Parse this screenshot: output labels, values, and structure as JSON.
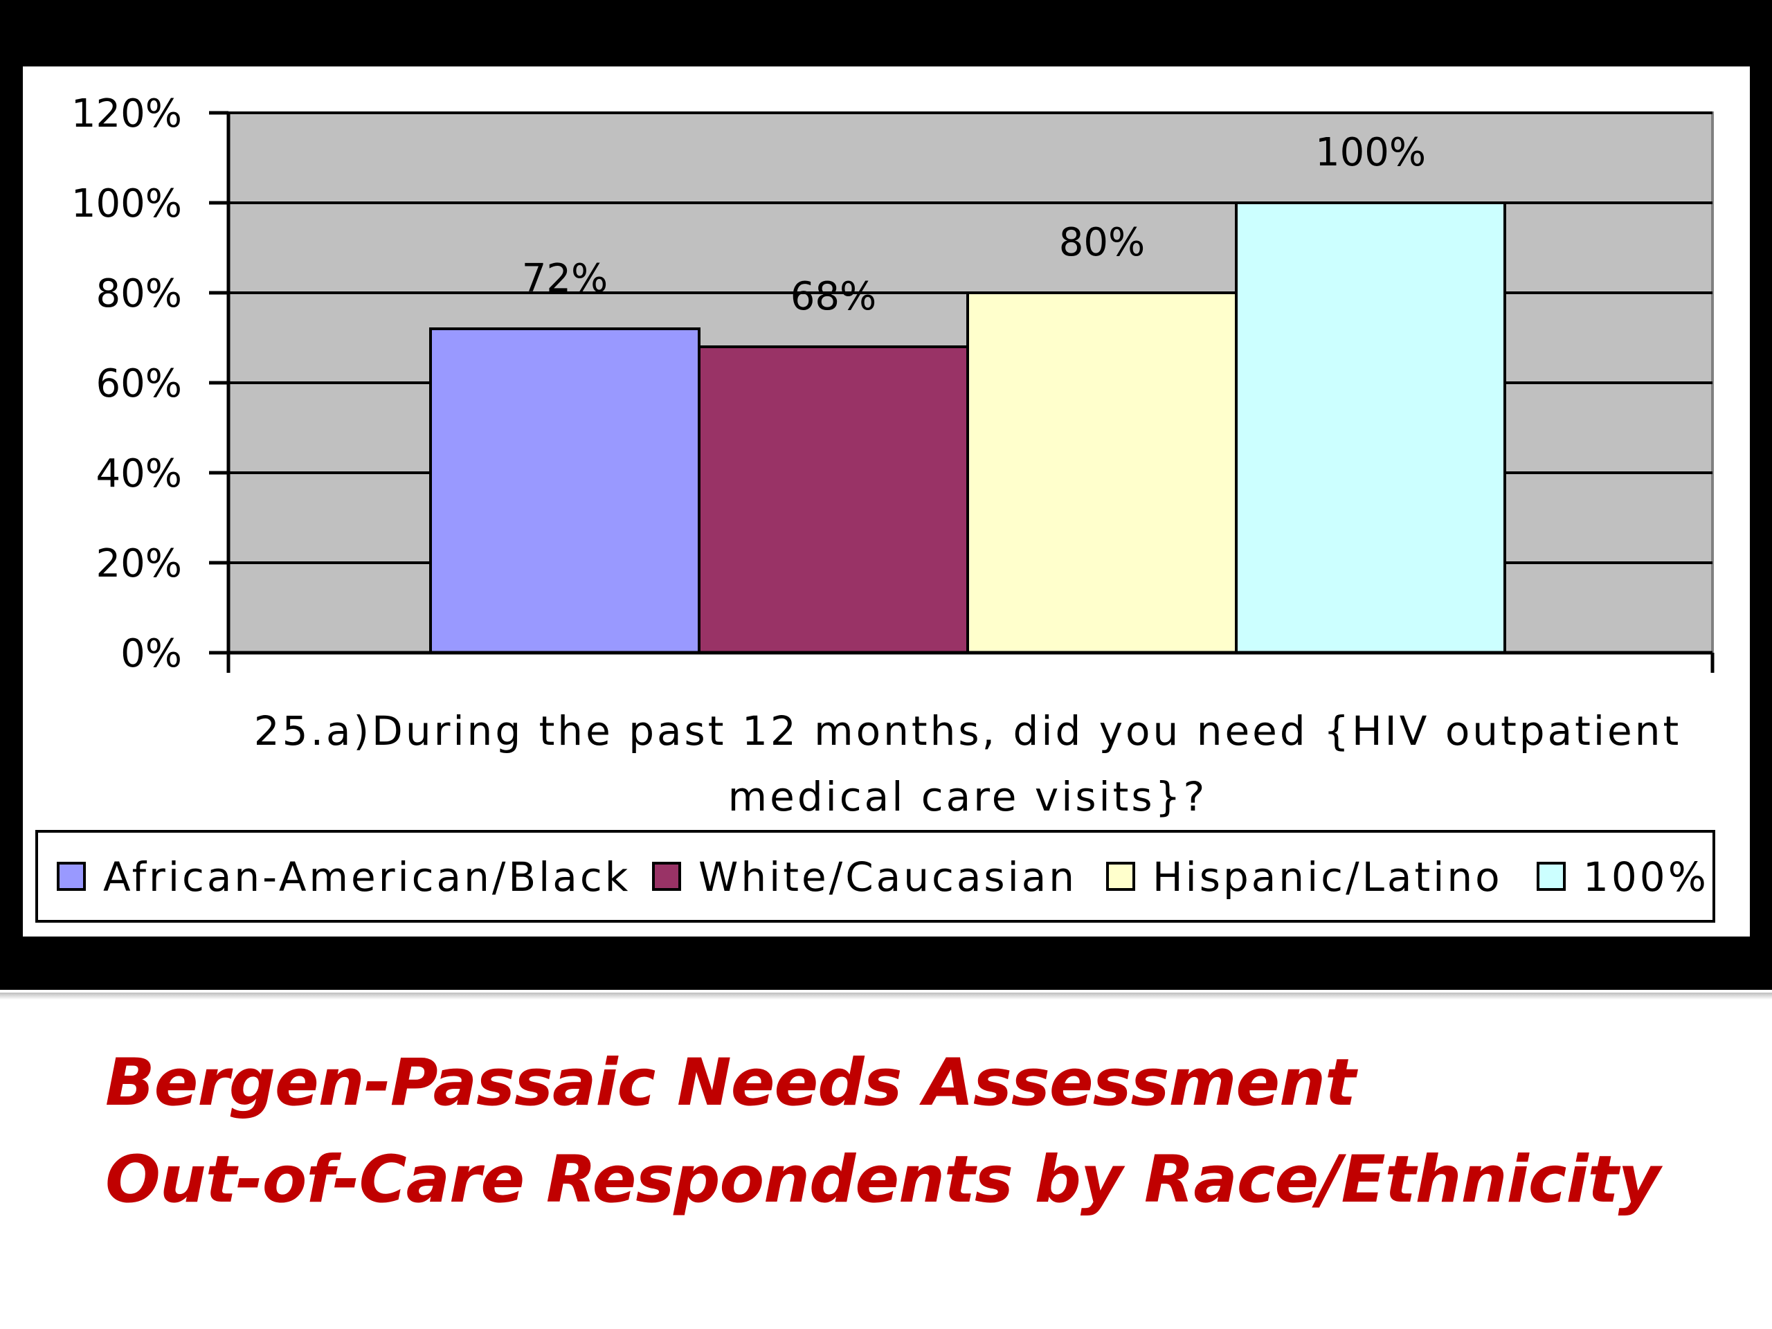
{
  "chart_data": {
    "type": "bar",
    "title": "",
    "xlabel": "25.a)During the past 12 months, did you need {HIV outpatient medical care visits}?",
    "xlabel_lines": [
      "25.a)During the past 12 months, did you need {HIV outpatient",
      "medical care visits}?"
    ],
    "ylabel": "",
    "ylim": [
      0,
      120
    ],
    "yticks": [
      0,
      20,
      40,
      60,
      80,
      100,
      120
    ],
    "ytick_labels": [
      "0%",
      "20%",
      "40%",
      "60%",
      "80%",
      "100%",
      "120%"
    ],
    "grid": true,
    "legend_position": "bottom",
    "series": [
      {
        "name": "African-American/Black",
        "values": [
          72
        ],
        "label": "72%",
        "color": "#9999ff"
      },
      {
        "name": "White/Caucasian",
        "values": [
          68
        ],
        "label": "68%",
        "color": "#993366"
      },
      {
        "name": "Hispanic/Latino",
        "values": [
          80
        ],
        "label": "80%",
        "color": "#ffffcc"
      },
      {
        "name": "100%",
        "values": [
          100
        ],
        "label": "100%",
        "color": "#ccffff"
      }
    ],
    "colors": {
      "plot_background": "#c0c0c0",
      "chart_background": "#ffffff",
      "frame": "#000000"
    }
  },
  "slide": {
    "title_line_1": "Bergen-Passaic Needs Assessment",
    "title_line_2": "Out-of-Care Respondents by Race/Ethnicity",
    "title_color": "#c00000"
  }
}
